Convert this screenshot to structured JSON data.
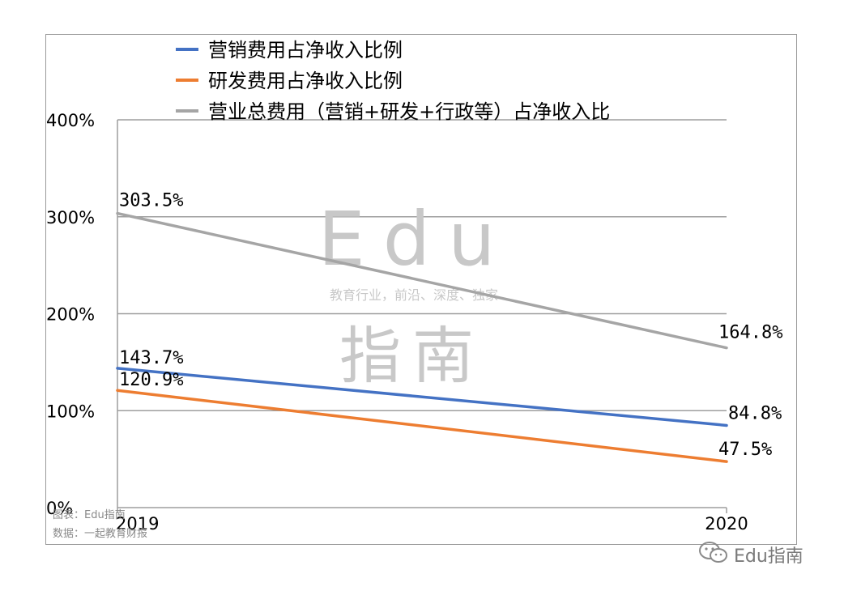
{
  "chart_data": {
    "type": "line",
    "x": [
      "2019",
      "2020"
    ],
    "series": [
      {
        "name": "营销费用占净收入比例",
        "values": [
          143.7,
          84.8
        ],
        "labels": [
          "143.7%",
          "84.8%"
        ],
        "color": "#4472C4"
      },
      {
        "name": "研发费用占净收入比例",
        "values": [
          120.9,
          47.5
        ],
        "labels": [
          "120.9%",
          "47.5%"
        ],
        "color": "#ED7D31"
      },
      {
        "name": "营业总费用（营销+研发+行政等）占净收入比",
        "values": [
          303.5,
          164.8
        ],
        "labels": [
          "303.5%",
          "164.8%"
        ],
        "color": "#A5A5A5"
      }
    ],
    "y_ticks": [
      "0%",
      "100%",
      "200%",
      "300%",
      "400%"
    ],
    "ylim": [
      0,
      400
    ],
    "grid": true,
    "legend_position": "top"
  },
  "notes": {
    "source_chart": "图表：Edu指南",
    "source_data": "数据：一起教育财报"
  },
  "watermark": {
    "brand": "Edu",
    "tagline": "教育行业，前沿、深度、独家",
    "title": "指南"
  },
  "footer": {
    "account": "Edu指南",
    "icon": "wechat-icon"
  }
}
